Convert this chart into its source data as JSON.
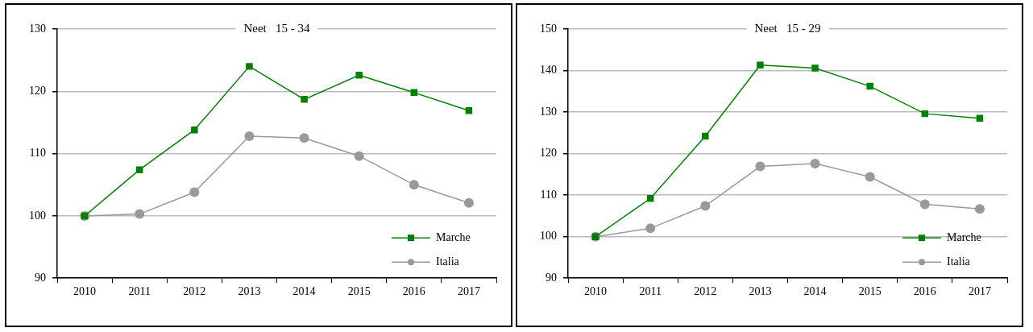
{
  "chart_data": [
    {
      "type": "line",
      "title": "Neet   15 - 34",
      "categories": [
        "2010",
        "2011",
        "2012",
        "2013",
        "2014",
        "2015",
        "2016",
        "2017"
      ],
      "series": [
        {
          "name": "Marche",
          "color": "#008000",
          "marker": "square",
          "values": [
            100,
            107.4,
            113.8,
            124.0,
            118.7,
            122.6,
            119.8,
            116.9
          ]
        },
        {
          "name": "Italia",
          "color": "#999999",
          "marker": "circle",
          "values": [
            100,
            100.3,
            103.8,
            112.8,
            112.5,
            109.6,
            105.0,
            102.1
          ]
        }
      ],
      "ylim": [
        90,
        130
      ],
      "yticks": [
        90,
        100,
        110,
        120,
        130
      ],
      "grid": "y",
      "legend": "bottom right"
    },
    {
      "type": "line",
      "title": "Neet   15 - 29",
      "categories": [
        "2010",
        "2011",
        "2012",
        "2013",
        "2014",
        "2015",
        "2016",
        "2017"
      ],
      "series": [
        {
          "name": "Marche",
          "color": "#008000",
          "marker": "square",
          "values": [
            100,
            109.2,
            124.2,
            141.3,
            140.6,
            136.2,
            129.6,
            128.5
          ]
        },
        {
          "name": "Italia",
          "color": "#999999",
          "marker": "circle",
          "values": [
            100,
            102.0,
            107.4,
            116.9,
            117.6,
            114.4,
            107.8,
            106.7
          ]
        }
      ],
      "ylim": [
        90,
        150
      ],
      "yticks": [
        90,
        100,
        110,
        120,
        130,
        140,
        150
      ],
      "grid": "y",
      "legend": "bottom right"
    }
  ]
}
